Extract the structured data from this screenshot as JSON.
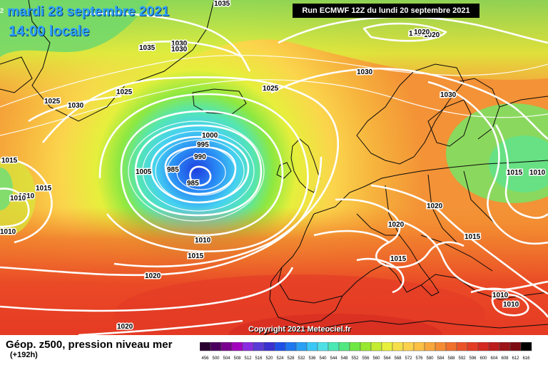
{
  "header": {
    "date": "mardi 28 septembre 2021",
    "time": "14:00 locale",
    "run": "Run ECMWF 12Z du lundi 20 septembre 2021"
  },
  "footer": {
    "title": "Géop. z500, pression niveau mer",
    "lead": "(+192h)",
    "copyright": "Copyright 2021 Meteociel.fr"
  },
  "legend": {
    "values": [
      "456",
      "500",
      "504",
      "508",
      "512",
      "516",
      "520",
      "524",
      "528",
      "532",
      "536",
      "540",
      "544",
      "548",
      "552",
      "556",
      "560",
      "564",
      "568",
      "572",
      "576",
      "580",
      "584",
      "588",
      "592",
      "596",
      "600",
      "604",
      "608",
      "612",
      "616"
    ],
    "colors": [
      "#2a0030",
      "#4b0060",
      "#7a008f",
      "#a300c0",
      "#8a2be2",
      "#5a3ad6",
      "#3a2fd0",
      "#1e50e8",
      "#1e78f0",
      "#2aa0f5",
      "#3cc8f7",
      "#4fe0e6",
      "#4ce8b4",
      "#52e880",
      "#70e844",
      "#98e830",
      "#c4ec30",
      "#e8f03c",
      "#f6e04a",
      "#fcd24c",
      "#fcc042",
      "#f8a83a",
      "#f48c34",
      "#f0702c",
      "#ea5428",
      "#e43c24",
      "#d42820",
      "#bc1c1c",
      "#9c1418",
      "#7c0c12",
      "#000000"
    ]
  },
  "isobar_labels": [
    {
      "value": "1035"
    },
    {
      "value": "1035"
    },
    {
      "value": "1030"
    },
    {
      "value": "1030"
    },
    {
      "value": "1025"
    },
    {
      "value": "1025"
    },
    {
      "value": "1025"
    },
    {
      "value": "1030"
    },
    {
      "value": "1030"
    },
    {
      "value": "1030"
    },
    {
      "value": "1020"
    },
    {
      "value": "1020"
    },
    {
      "value": "1000"
    },
    {
      "value": "995"
    },
    {
      "value": "990"
    },
    {
      "value": "985"
    },
    {
      "value": "985"
    },
    {
      "value": "1005"
    },
    {
      "value": "1015"
    },
    {
      "value": "1010"
    },
    {
      "value": "1015"
    },
    {
      "value": "1010"
    },
    {
      "value": "1010"
    },
    {
      "value": "1015"
    },
    {
      "value": "1020"
    },
    {
      "value": "1020"
    },
    {
      "value": "1020"
    },
    {
      "value": "1020"
    },
    {
      "value": "1015"
    },
    {
      "value": "1015"
    },
    {
      "value": "1015"
    },
    {
      "value": "1010"
    },
    {
      "value": "1010"
    },
    {
      "value": "1010"
    },
    {
      "value": "1010"
    },
    {
      "value": "1020"
    }
  ]
}
